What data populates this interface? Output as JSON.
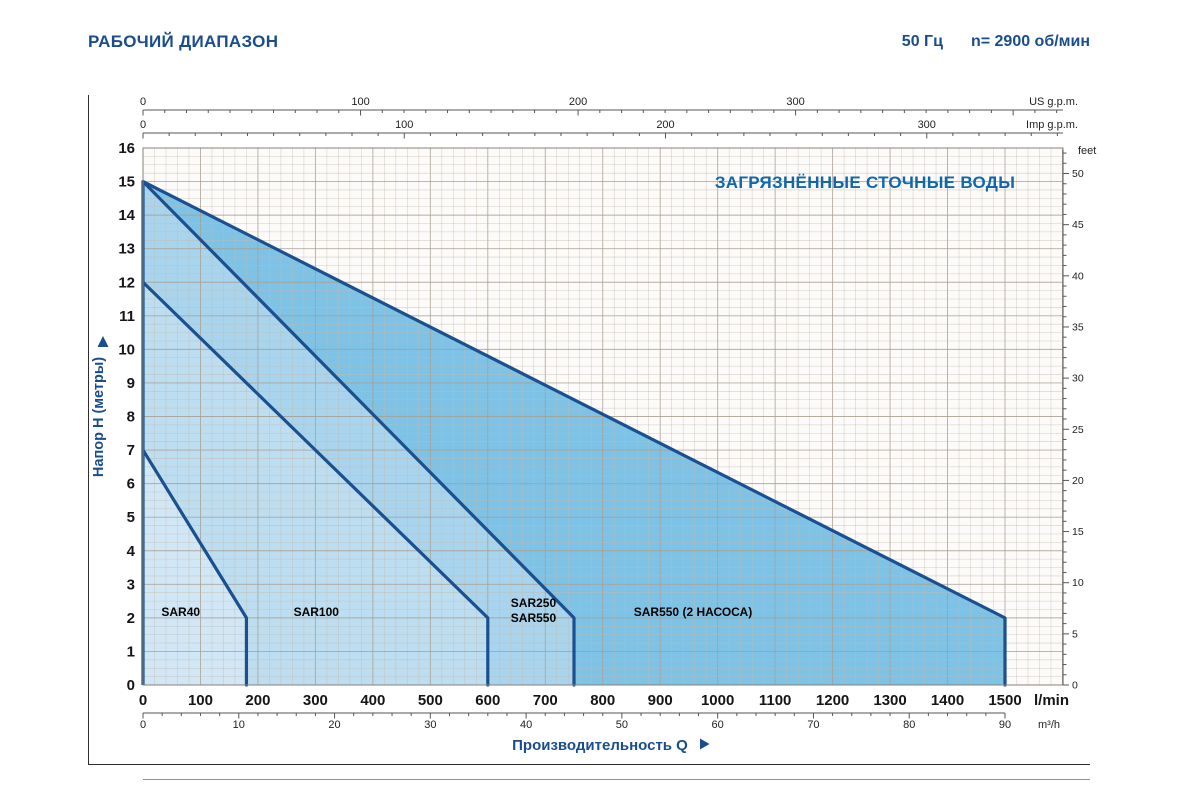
{
  "header": {
    "title": "РАБОЧИЙ ДИАПАЗОН",
    "frequency": "50 Гц",
    "speed": "n= 2900 об/мин"
  },
  "chart_data": {
    "type": "area",
    "title": "РАБОЧИЙ ДИАПАЗОН",
    "annotation": "ЗАГРЯЗНЁННЫЕ СТОЧНЫЕ ВОДЫ",
    "x_axis": {
      "label": "Производительность Q",
      "unit_primary": "l/min",
      "min": 0,
      "max": 1500,
      "major_step": 100,
      "minor_step": 20,
      "grid_max": 1600
    },
    "x_axis_secondary": {
      "unit": "m³/h",
      "min": 0,
      "max": 90,
      "major_step": 10,
      "minor_step": 2,
      "l_per_unit": 16.6667
    },
    "x_axis_us": {
      "unit": "US g.p.m.",
      "ticks": [
        0,
        100,
        200,
        300
      ],
      "minor_step": 10,
      "l_per_unit": 3.78541
    },
    "x_axis_imp": {
      "unit": "Imp g.p.m.",
      "ticks": [
        0,
        100,
        200,
        300
      ],
      "minor_step": 10,
      "l_per_unit": 4.54609
    },
    "y_axis": {
      "label": "Напор H (метры)",
      "min": 0,
      "max": 16,
      "major_step": 1,
      "minor_step": 0.25
    },
    "y_axis_secondary": {
      "unit": "feet",
      "min": 0,
      "max": 50,
      "major_step": 5,
      "minor_step": 1,
      "m_per_unit": 0.3048
    },
    "grid": {
      "minor_color": "#c3bbae",
      "major_color": "#a89f90"
    },
    "colors": {
      "line": "#1a5090",
      "plot_bg": "#fcfbf9",
      "accent_blue": "#1166ac",
      "title_blue": "#1a4d8d"
    },
    "series": [
      {
        "name": "SAR550-2-pumps",
        "fill": "#7ec2e6",
        "points": [
          [
            0,
            15
          ],
          [
            1500,
            2
          ],
          [
            1500,
            0
          ],
          [
            0,
            0
          ]
        ],
        "outline": [
          [
            0,
            15
          ],
          [
            1500,
            2
          ],
          [
            1500,
            0
          ]
        ],
        "label": {
          "text": "SAR550 (2 НАСОСА)",
          "q": 854,
          "h": 2.05
        }
      },
      {
        "name": "SAR250-SAR550",
        "fill": "#a8d4ee",
        "points": [
          [
            0,
            15
          ],
          [
            750,
            2
          ],
          [
            750,
            0
          ],
          [
            0,
            0
          ]
        ],
        "outline": [
          [
            0,
            15
          ],
          [
            750,
            2
          ],
          [
            750,
            0
          ]
        ],
        "label": {
          "lines": [
            "SAR250",
            "SAR550"
          ],
          "q": 640,
          "h": 2.33
        }
      },
      {
        "name": "SAR100",
        "fill": "#bdddf1",
        "points": [
          [
            0,
            12
          ],
          [
            600,
            2
          ],
          [
            600,
            0
          ],
          [
            0,
            0
          ]
        ],
        "outline": [
          [
            0,
            12
          ],
          [
            600,
            2
          ],
          [
            600,
            0
          ]
        ],
        "label": {
          "text": "SAR100",
          "q": 262,
          "h": 2.05
        }
      },
      {
        "name": "SAR40",
        "fill": "#d2e7f6",
        "points": [
          [
            0,
            7
          ],
          [
            180,
            2
          ],
          [
            180,
            0
          ],
          [
            0,
            0
          ]
        ],
        "outline": [
          [
            0,
            7
          ],
          [
            180,
            2
          ],
          [
            180,
            0
          ]
        ],
        "label": {
          "text": "SAR40",
          "q": 32,
          "h": 2.05
        }
      }
    ]
  }
}
